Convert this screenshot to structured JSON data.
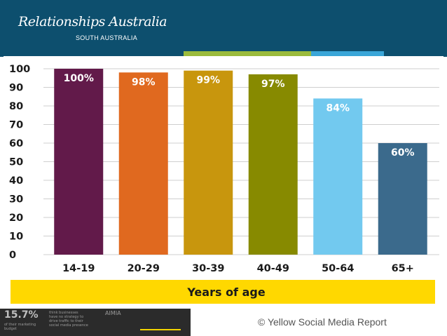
{
  "header": {
    "logo_main": "Relationships Australia",
    "logo_sub": "SOUTH AUSTRALIA",
    "stripe_colors": [
      "#0d4f6e",
      "#9bbb3c",
      "#3aa6d8",
      "#0d4f6e"
    ]
  },
  "chart_data": {
    "type": "bar",
    "categories": [
      "14-19",
      "20-29",
      "30-39",
      "40-49",
      "50-64",
      "65+"
    ],
    "values": [
      100,
      98,
      99,
      97,
      84,
      60
    ],
    "data_labels": [
      "100%",
      "98%",
      "99%",
      "97%",
      "84%",
      "60%"
    ],
    "bar_colors": [
      "#621a4a",
      "#e0691f",
      "#c8960d",
      "#878a00",
      "#72c9ef",
      "#3b6a8c"
    ],
    "y_ticks": [
      0,
      10,
      20,
      30,
      40,
      50,
      60,
      70,
      80,
      90,
      100
    ],
    "ylim": [
      0,
      100
    ],
    "xlabel": "Years of age",
    "xlabel_band_color": "#ffd800",
    "grid": true
  },
  "footer": {
    "stat": "15.7%",
    "stat_caption": [
      "of their marketing",
      "budget"
    ],
    "blurb": [
      "think businesses",
      "have no strategy to",
      "drive traffic to their",
      "social media presence"
    ],
    "partner": "AIMIA",
    "copyright": "© Yellow Social Media Report"
  }
}
